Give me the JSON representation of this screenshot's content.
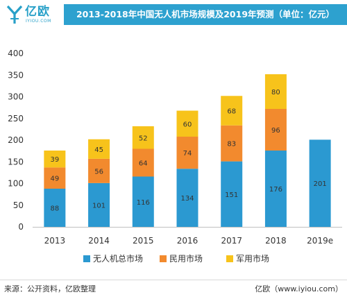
{
  "header": {
    "logo_text": "亿欧",
    "logo_sub": "IYIOU.COM",
    "title": "2013-2018年中国无人机市场规模及2019年预测（单位：亿元）"
  },
  "colors": {
    "title_bar": "#2da1cf",
    "civil_consumer": "#2b99d1",
    "civil": "#f28a2e",
    "military": "#f7c31b"
  },
  "chart_data": {
    "type": "bar",
    "stacked": true,
    "categories": [
      "2013",
      "2014",
      "2015",
      "2016",
      "2017",
      "2018",
      "2019e"
    ],
    "series": [
      {
        "name": "无人机总市场",
        "values": [
          88,
          101,
          116,
          134,
          151,
          176,
          201
        ]
      },
      {
        "name": "民用市场",
        "values": [
          49,
          56,
          64,
          74,
          83,
          96,
          null
        ]
      },
      {
        "name": "军用市场",
        "values": [
          39,
          45,
          52,
          60,
          68,
          80,
          null
        ]
      }
    ],
    "ylim": [
      0,
      400
    ],
    "yticks": [
      0,
      50,
      100,
      150,
      200,
      250,
      300,
      350,
      400
    ],
    "grid": false,
    "legend_position": "bottom"
  },
  "footer": {
    "source": "来源：公开资料，亿欧整理",
    "credit": "亿欧（www.iyiou.com）"
  }
}
